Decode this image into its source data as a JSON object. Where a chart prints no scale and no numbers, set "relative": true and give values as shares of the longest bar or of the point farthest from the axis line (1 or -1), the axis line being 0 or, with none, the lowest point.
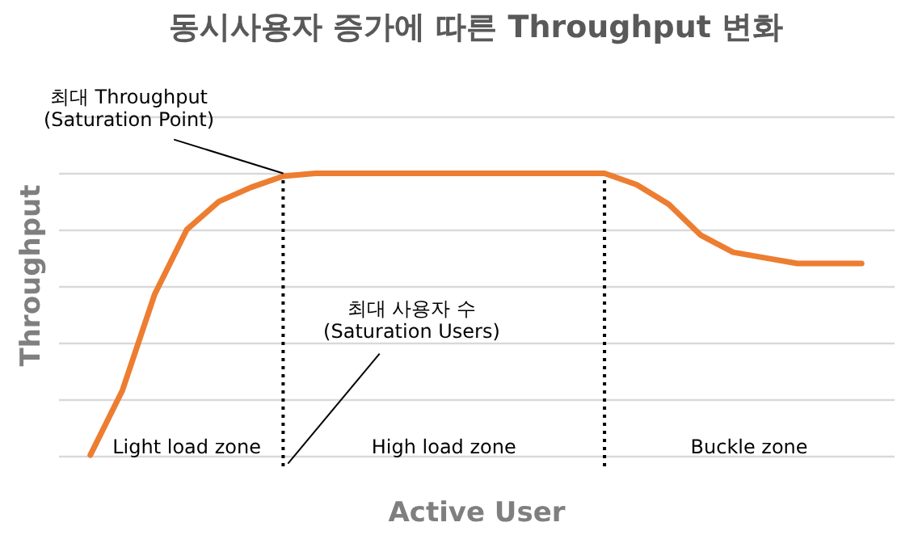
{
  "chart_data": {
    "type": "line",
    "title": "동시사용자 증가에 따른 Throughput 변화",
    "xlabel": "Active User",
    "ylabel": "Throughput",
    "relative": true,
    "grid": "y",
    "marker": "none",
    "line_style": "solid",
    "tick_labels": false,
    "categories": [
      null,
      null,
      null,
      null,
      null,
      null,
      null,
      null,
      null,
      null,
      null,
      null,
      null,
      null,
      null,
      null,
      null,
      null,
      null,
      null,
      null,
      null,
      null,
      null,
      null
    ],
    "series": [
      {
        "color": "#ed7d31",
        "values": [
          0,
          0.23,
          0.57,
          0.8,
          0.9,
          0.95,
          0.99,
          1,
          1,
          1,
          1,
          1,
          1,
          1,
          1,
          1,
          1,
          0.96,
          0.89,
          0.78,
          0.72,
          0.7,
          0.68,
          0.68,
          0.68
        ]
      }
    ],
    "annotations": [
      "최대 Throughput\n(Saturation Point)",
      "최대 사용자 수\n(Saturation Users)",
      "Light load zone",
      "High load zone",
      "Buckle zone"
    ]
  }
}
